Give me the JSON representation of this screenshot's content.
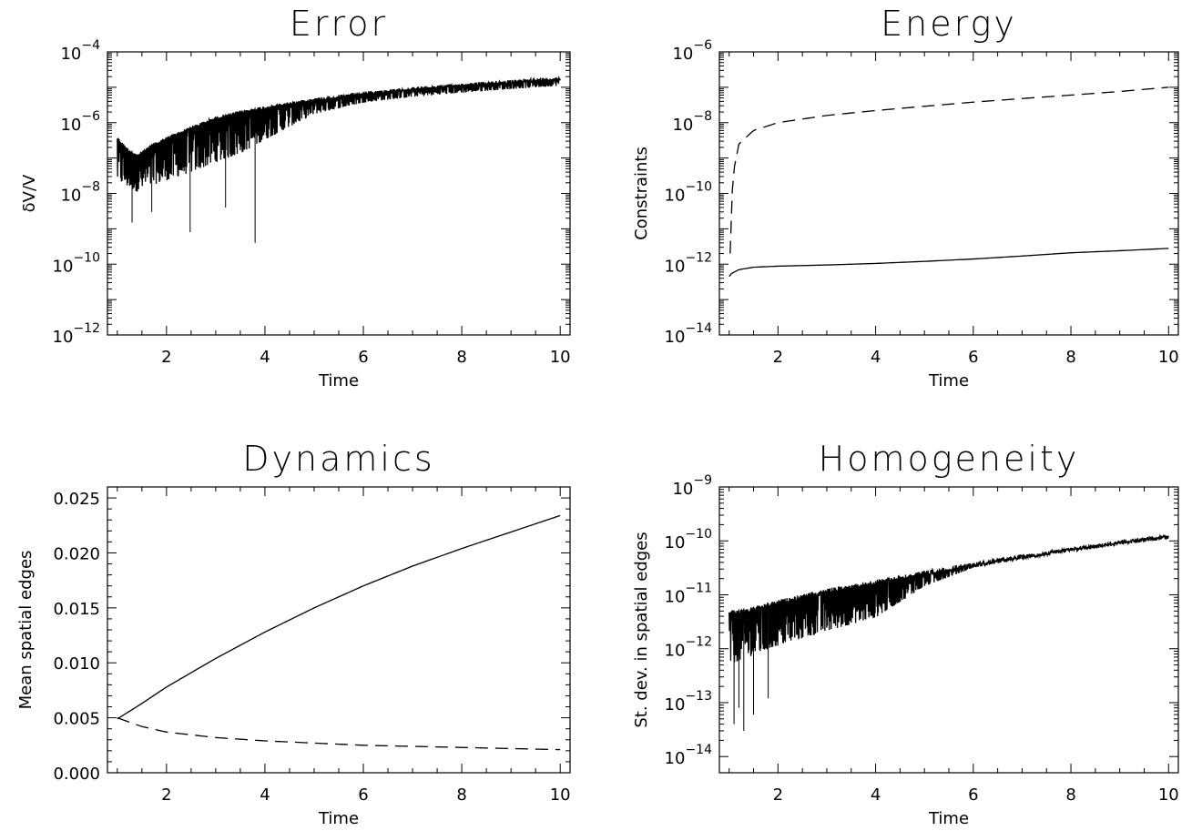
{
  "chart_data": [
    {
      "id": "error",
      "type": "line",
      "title": "Error",
      "xlabel": "Time",
      "ylabel": "δV/V",
      "yscale": "log",
      "xlim": [
        0.8,
        10.2
      ],
      "ylim_exp": [
        -12,
        -4
      ],
      "xticks": [
        2,
        4,
        6,
        8,
        10
      ],
      "yticks_exp": [
        -12,
        -10,
        -8,
        -6,
        -4
      ],
      "series": [
        {
          "style": "solid",
          "kind": "oscillating",
          "x": [
            1.0,
            1.2,
            1.4,
            1.7,
            2.0,
            2.5,
            3.0,
            3.5,
            4.0,
            5.0,
            6.0,
            7.0,
            8.0,
            9.0,
            10.0
          ],
          "upper": [
            4e-07,
            2e-07,
            1.3e-07,
            2.5e-07,
            4e-07,
            8e-07,
            1.5e-06,
            2.2e-06,
            3e-06,
            5e-06,
            7.5e-06,
            1e-05,
            1.3e-05,
            1.6e-05,
            2e-05
          ],
          "lower": [
            5e-09,
            4e-09,
            3e-09,
            4e-09,
            5e-09,
            8e-09,
            1.5e-08,
            3e-08,
            1e-07,
            1e-06,
            2.5e-06,
            3.8e-06,
            5e-06,
            6.5e-06,
            8e-06
          ],
          "spikes": [
            [
              1.3,
              1.5e-09
            ],
            [
              1.7,
              3e-09
            ],
            [
              2.48,
              8e-10
            ],
            [
              3.2,
              4e-09
            ],
            [
              3.8,
              4e-10
            ]
          ]
        }
      ]
    },
    {
      "id": "energy",
      "type": "line",
      "title": "Energy",
      "xlabel": "Time",
      "ylabel": "Constraints",
      "yscale": "log",
      "xlim": [
        0.8,
        10.2
      ],
      "ylim_exp": [
        -14,
        -6
      ],
      "xticks": [
        2,
        4,
        6,
        8,
        10
      ],
      "yticks_exp": [
        -14,
        -12,
        -10,
        -8,
        -6
      ],
      "series": [
        {
          "style": "dashed",
          "kind": "line",
          "x": [
            1.02,
            1.06,
            1.1,
            1.2,
            1.5,
            2.0,
            3.0,
            4.0,
            5.0,
            6.0,
            7.0,
            8.0,
            9.0,
            10.0
          ],
          "y": [
            2e-12,
            1e-10,
            5e-10,
            2.5e-09,
            6e-09,
            1e-08,
            1.6e-08,
            2.2e-08,
            2.9e-08,
            3.8e-08,
            4.8e-08,
            6e-08,
            7.6e-08,
            1e-07
          ]
        },
        {
          "style": "solid",
          "kind": "line",
          "x": [
            1.0,
            1.05,
            1.2,
            1.5,
            2.0,
            3.0,
            4.0,
            5.0,
            6.0,
            7.0,
            8.0,
            9.0,
            10.0
          ],
          "y": [
            4.5e-13,
            5.5e-13,
            7e-13,
            8.2e-13,
            8.8e-13,
            9.5e-13,
            1.05e-12,
            1.2e-12,
            1.4e-12,
            1.7e-12,
            2.1e-12,
            2.4e-12,
            2.8e-12
          ]
        }
      ]
    },
    {
      "id": "dynamics",
      "type": "line",
      "title": "Dynamics",
      "xlabel": "Time",
      "ylabel": "Mean  spatial  edges",
      "yscale": "linear",
      "xlim": [
        0.8,
        10.2
      ],
      "ylim": [
        0.0,
        0.026
      ],
      "xticks": [
        2,
        4,
        6,
        8,
        10
      ],
      "yticks": [
        "0.000",
        "0.005",
        "0.010",
        "0.015",
        "0.020",
        "0.025"
      ],
      "series": [
        {
          "style": "solid",
          "kind": "line",
          "x": [
            1.0,
            1.5,
            2.0,
            3.0,
            4.0,
            5.0,
            6.0,
            7.0,
            8.0,
            9.0,
            10.0
          ],
          "y": [
            0.0049,
            0.0063,
            0.0078,
            0.0104,
            0.0128,
            0.015,
            0.017,
            0.0188,
            0.0204,
            0.0219,
            0.0234
          ]
        },
        {
          "style": "dashed",
          "kind": "line",
          "x": [
            1.0,
            1.5,
            2.0,
            3.0,
            4.0,
            5.0,
            6.0,
            7.0,
            8.0,
            9.0,
            10.0
          ],
          "y": [
            0.005,
            0.0042,
            0.0037,
            0.0032,
            0.0029,
            0.0027,
            0.0025,
            0.0024,
            0.0023,
            0.0022,
            0.0021
          ]
        }
      ]
    },
    {
      "id": "homogeneity",
      "type": "line",
      "title": "Homogeneity",
      "xlabel": "Time",
      "ylabel": "St.  dev.  in  spatial  edges",
      "yscale": "log",
      "xlim": [
        0.8,
        10.2
      ],
      "ylim_exp": [
        -14.3,
        -9
      ],
      "xticks": [
        2,
        4,
        6,
        8,
        10
      ],
      "yticks_exp": [
        -14,
        -13,
        -12,
        -11,
        -10,
        -9
      ],
      "series": [
        {
          "style": "solid",
          "kind": "oscillating",
          "x": [
            1.0,
            1.5,
            2.0,
            3.0,
            4.0,
            5.0,
            6.0,
            7.0,
            8.0,
            9.0,
            10.0
          ],
          "upper": [
            5e-12,
            6e-12,
            8e-12,
            1.3e-11,
            1.9e-11,
            2.8e-11,
            4e-11,
            5.5e-11,
            7.5e-11,
            1e-10,
            1.3e-10
          ],
          "lower": [
            1.5e-13,
            2.5e-13,
            4e-13,
            8e-13,
            1.6e-12,
            1e-11,
            2.8e-11,
            4.3e-11,
            6e-11,
            8.5e-11,
            1.15e-10
          ],
          "spikes": [
            [
              1.1,
              4e-14
            ],
            [
              1.2,
              8e-14
            ],
            [
              1.3,
              3e-14
            ],
            [
              1.5,
              6e-14
            ],
            [
              1.8,
              1.2e-13
            ]
          ]
        }
      ]
    }
  ]
}
